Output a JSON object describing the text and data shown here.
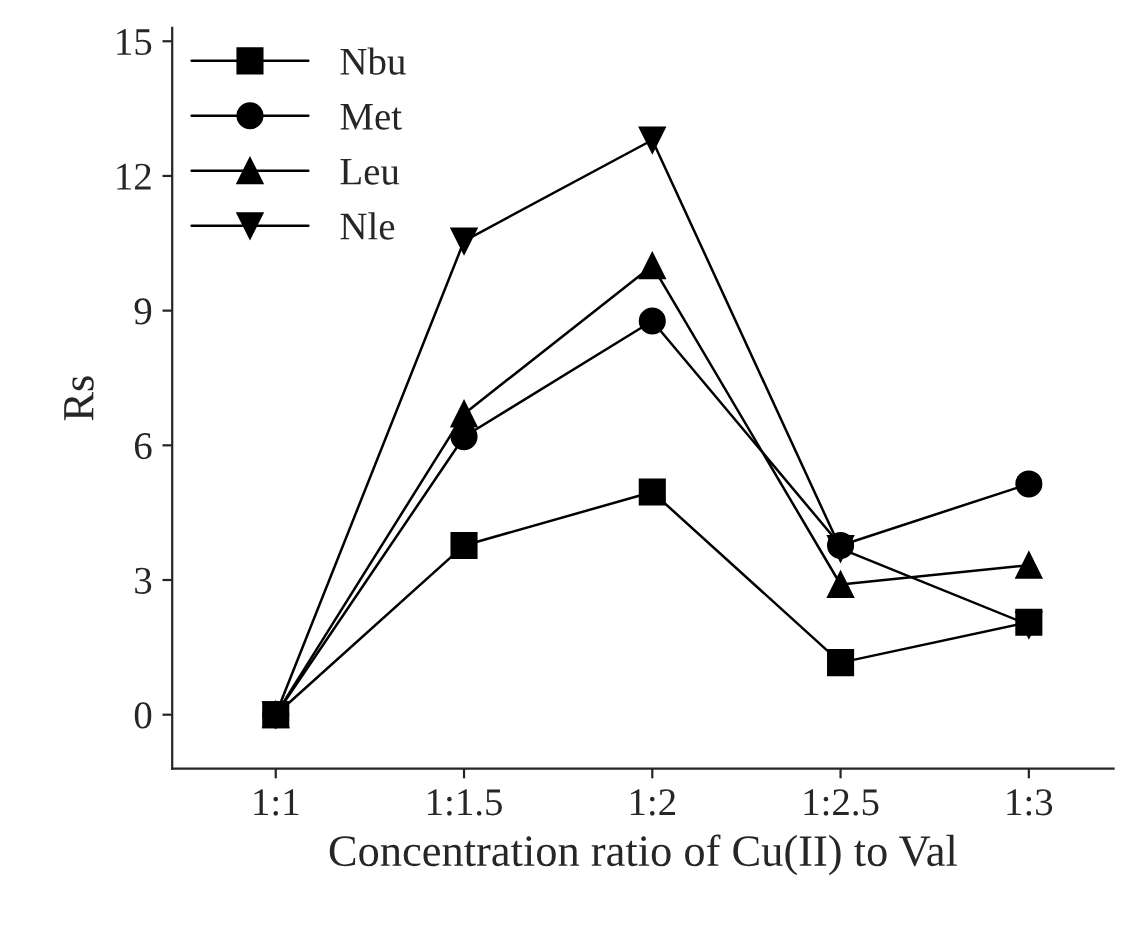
{
  "chart_data": {
    "type": "line",
    "xlabel": "Concentration ratio of Cu(II) to Val",
    "ylabel": "Rs",
    "categories": [
      "1:1",
      "1:1.5",
      "1:2",
      "1:2.5",
      "1:3"
    ],
    "ylim": [
      -1.2,
      15.3
    ],
    "yticks": [
      0,
      3,
      6,
      9,
      12,
      15
    ],
    "legend": "top left",
    "grid": false,
    "series": [
      {
        "name": "Nbu",
        "color": "#000000",
        "marker": "square",
        "values": [
          0,
          3.77,
          4.96,
          1.16,
          2.06
        ]
      },
      {
        "name": "Met",
        "color": "#000000",
        "marker": "circle",
        "values": [
          0,
          6.19,
          8.77,
          3.77,
          5.14
        ]
      },
      {
        "name": "Leu",
        "color": "#000000",
        "marker": "triangle",
        "values": [
          0,
          6.7,
          10.0,
          2.9,
          3.33
        ]
      },
      {
        "name": "Nle",
        "color": "#000000",
        "marker": "triangle_down",
        "values": [
          0,
          10.55,
          12.8,
          3.7,
          2.0
        ]
      }
    ]
  }
}
